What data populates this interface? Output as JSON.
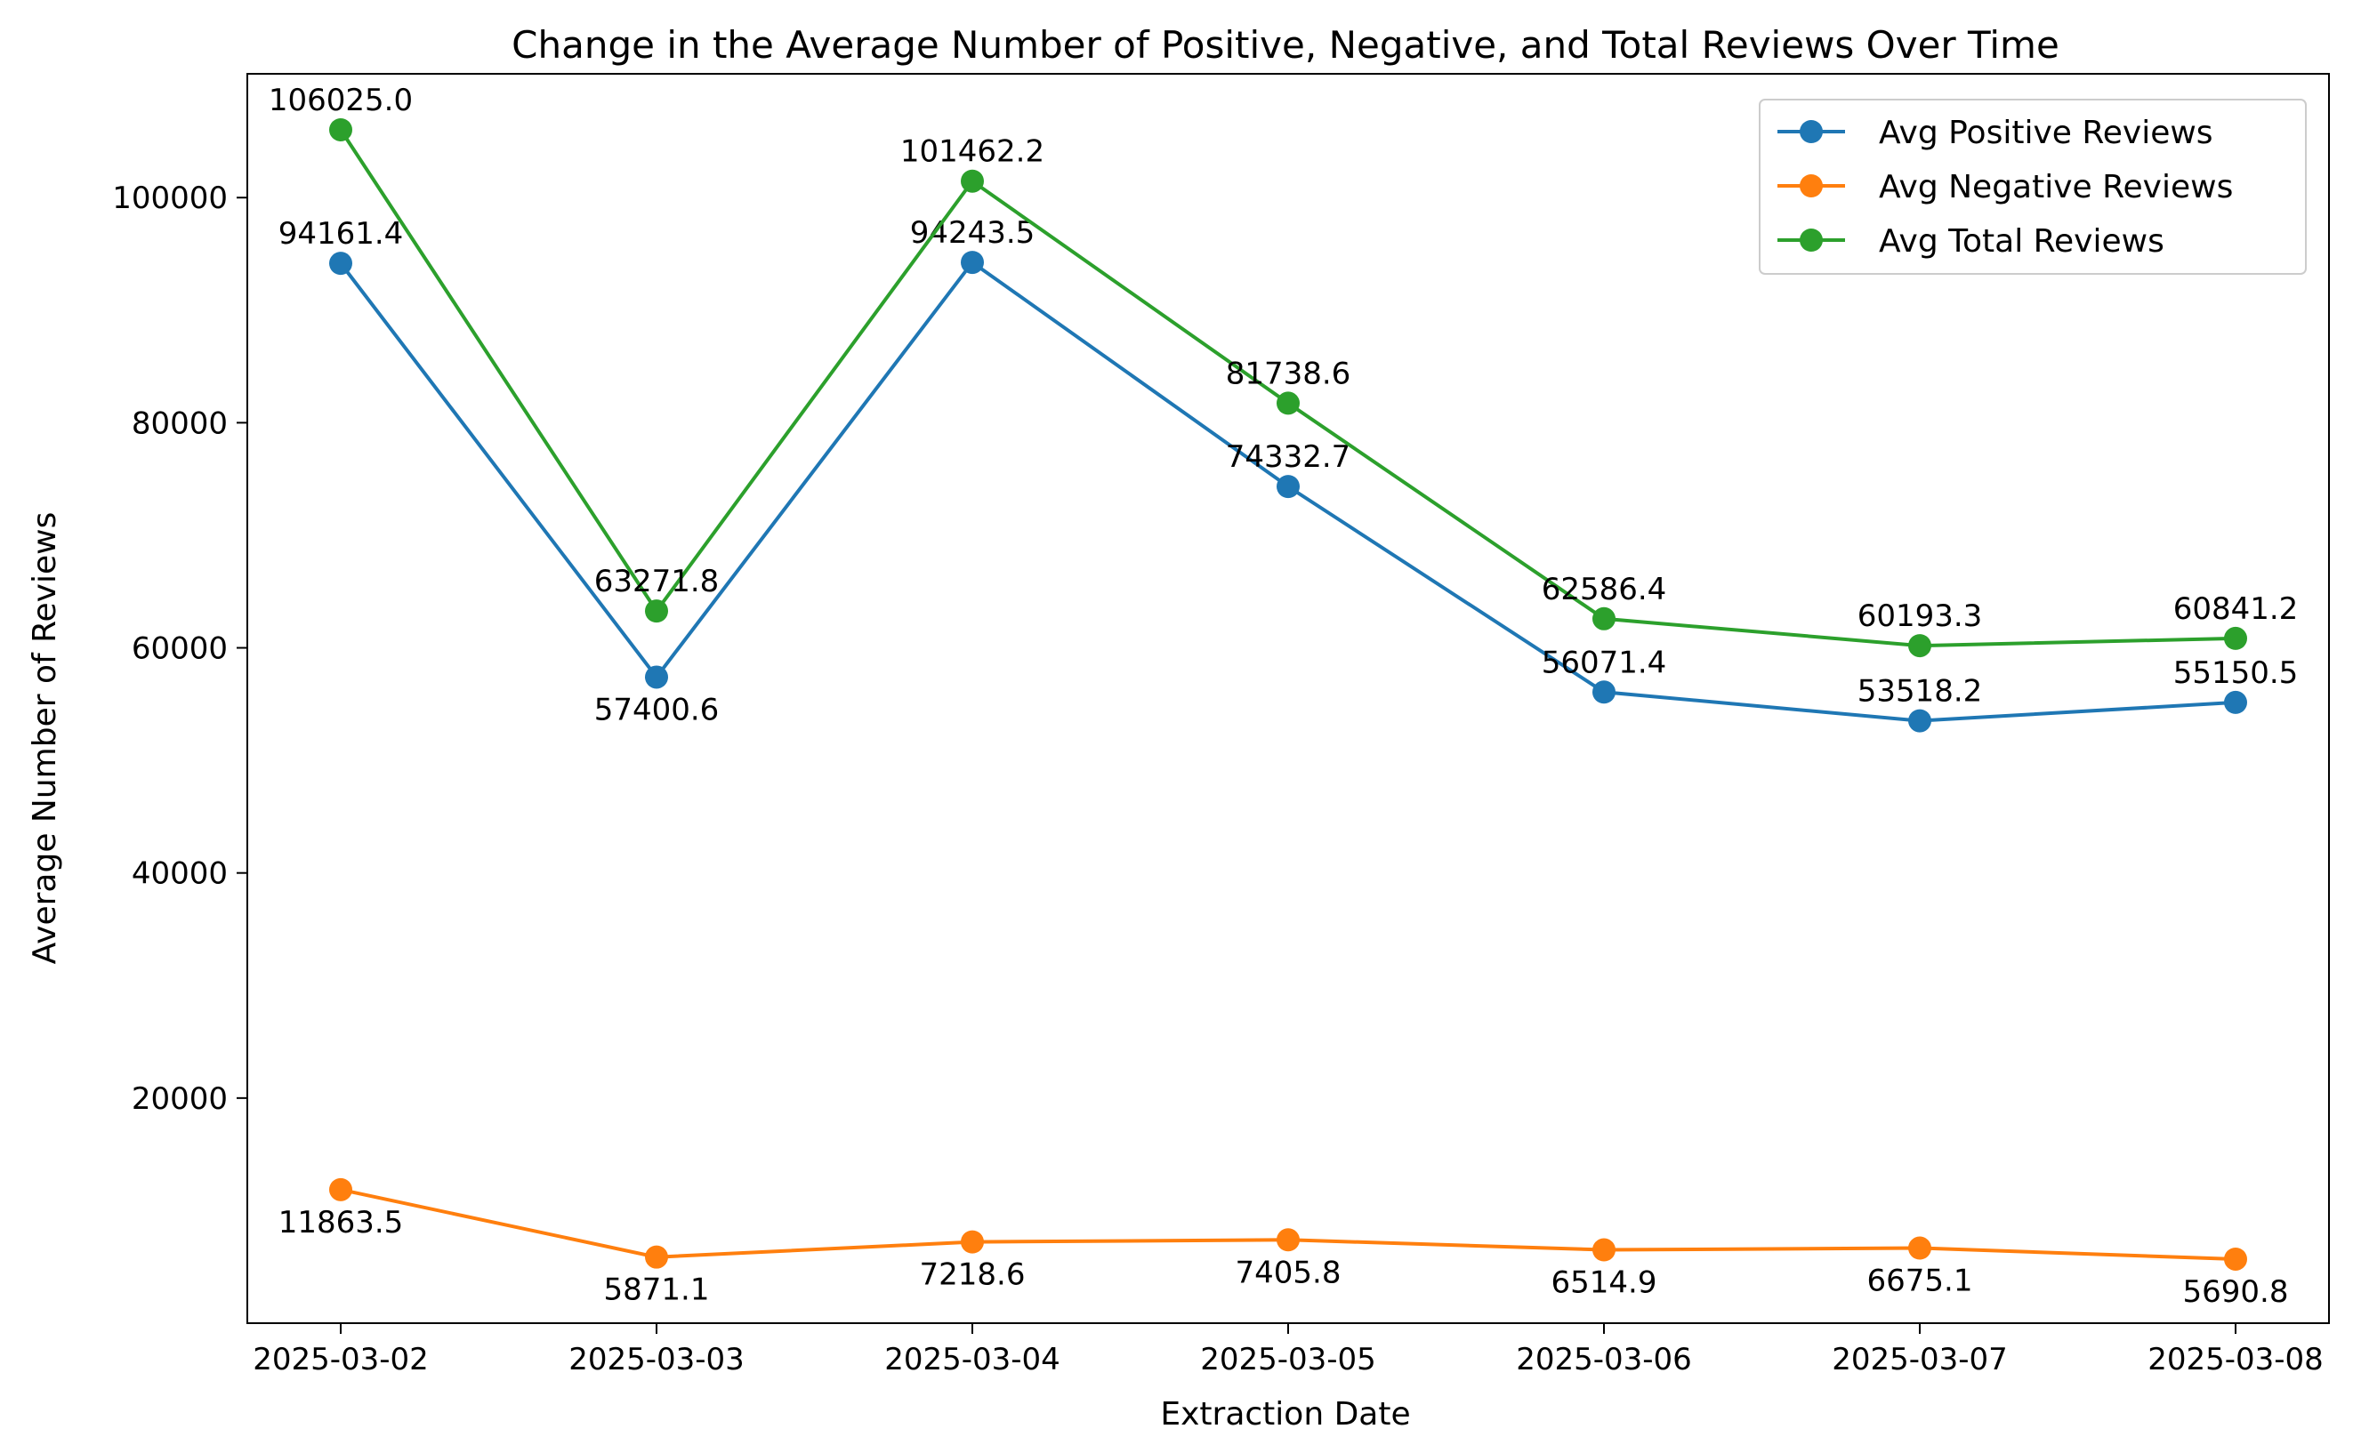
{
  "chart_data": {
    "type": "line",
    "title": "Change in the Average Number of Positive, Negative, and Total Reviews Over Time",
    "xlabel": "Extraction Date",
    "ylabel": "Average Number of Reviews",
    "categories": [
      "2025-03-02",
      "2025-03-03",
      "2025-03-04",
      "2025-03-05",
      "2025-03-06",
      "2025-03-07",
      "2025-03-08"
    ],
    "ylim": [
      0,
      111000
    ],
    "yticks": [
      20000,
      40000,
      60000,
      80000,
      100000
    ],
    "grid": false,
    "legend_position": "top-right",
    "series": [
      {
        "name": "Avg Positive Reviews",
        "color": "#1f77b4",
        "values": [
          94161.4,
          57400.6,
          94243.5,
          74332.7,
          56071.4,
          53518.2,
          55150.5
        ],
        "labels": [
          "94161.4",
          "57400.6",
          "94243.5",
          "74332.7",
          "56071.4",
          "53518.2",
          "55150.5"
        ]
      },
      {
        "name": "Avg Negative Reviews",
        "color": "#ff7f0e",
        "values": [
          11863.5,
          5871.1,
          7218.6,
          7405.8,
          6514.9,
          6675.1,
          5690.8
        ],
        "labels": [
          "11863.5",
          "5871.1",
          "7218.6",
          "7405.8",
          "6514.9",
          "6675.1",
          "5690.8"
        ]
      },
      {
        "name": "Avg Total Reviews",
        "color": "#2ca02c",
        "values": [
          106025.0,
          63271.8,
          101462.2,
          81738.6,
          62586.4,
          60193.3,
          60841.2
        ],
        "labels": [
          "106025.0",
          "63271.8",
          "101462.2",
          "81738.6",
          "62586.4",
          "60193.3",
          "60841.2"
        ]
      }
    ]
  }
}
